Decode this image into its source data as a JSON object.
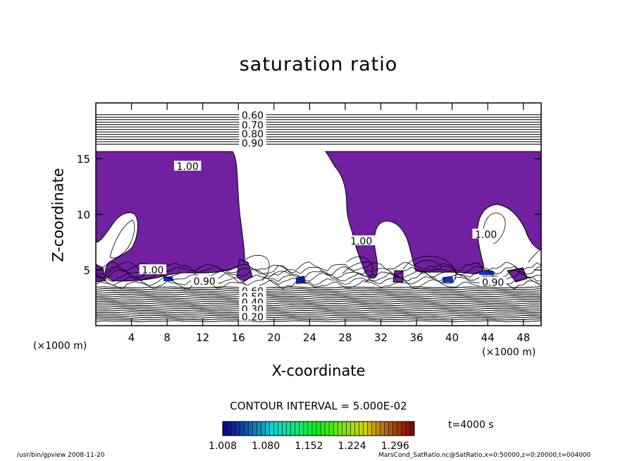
{
  "chart_data": {
    "type": "contour",
    "title": "saturation ratio",
    "xlabel": "X-coordinate",
    "ylabel": "Z-coordinate",
    "x_unit_left": "(×1000 m)",
    "x_unit_right": "(×1000 m)",
    "xlim": [
      0,
      50
    ],
    "ylim": [
      0,
      20
    ],
    "x_ticks": [
      4,
      8,
      12,
      16,
      20,
      24,
      28,
      32,
      36,
      40,
      44,
      48
    ],
    "y_ticks": [
      5,
      10,
      15
    ],
    "contour_interval_text": "CONTOUR INTERVAL = 5.000E-02",
    "contour_labels": [
      {
        "text": "0.60",
        "x": 17.6,
        "z": 18.9
      },
      {
        "text": "0.70",
        "x": 17.6,
        "z": 18.0
      },
      {
        "text": "0.80",
        "x": 17.6,
        "z": 17.2
      },
      {
        "text": "0.90",
        "x": 17.6,
        "z": 16.4
      },
      {
        "text": "1.00",
        "x": 10.3,
        "z": 14.3
      },
      {
        "text": "1.00",
        "x": 6.4,
        "z": 5.0
      },
      {
        "text": "0.90",
        "x": 12.2,
        "z": 4.0
      },
      {
        "text": "1.00",
        "x": 29.8,
        "z": 7.6
      },
      {
        "text": "1.00",
        "x": 43.8,
        "z": 8.2
      },
      {
        "text": "0.90",
        "x": 44.6,
        "z": 3.9
      },
      {
        "text": "0.60",
        "x": 17.6,
        "z": 3.1
      },
      {
        "text": "0.50",
        "x": 17.6,
        "z": 2.6
      },
      {
        "text": "0.40",
        "x": 17.6,
        "z": 2.1
      },
      {
        "text": "0.30",
        "x": 17.6,
        "z": 1.5
      },
      {
        "text": "0.20",
        "x": 17.6,
        "z": 0.8
      }
    ],
    "colorbar": {
      "min": 1.008,
      "max": 1.328,
      "tick_labels": [
        "1.008",
        "1.080",
        "1.152",
        "1.224",
        "1.296"
      ]
    },
    "fill_color": "#7020a0",
    "annotation_time": "t=4000 s"
  },
  "footer": {
    "left": "/usr/bin/gpview   2008-11-20",
    "right": "MarsCond_SatRatio.nc@SatRatio,x=0:50000,z=0:20000,t=004000"
  }
}
